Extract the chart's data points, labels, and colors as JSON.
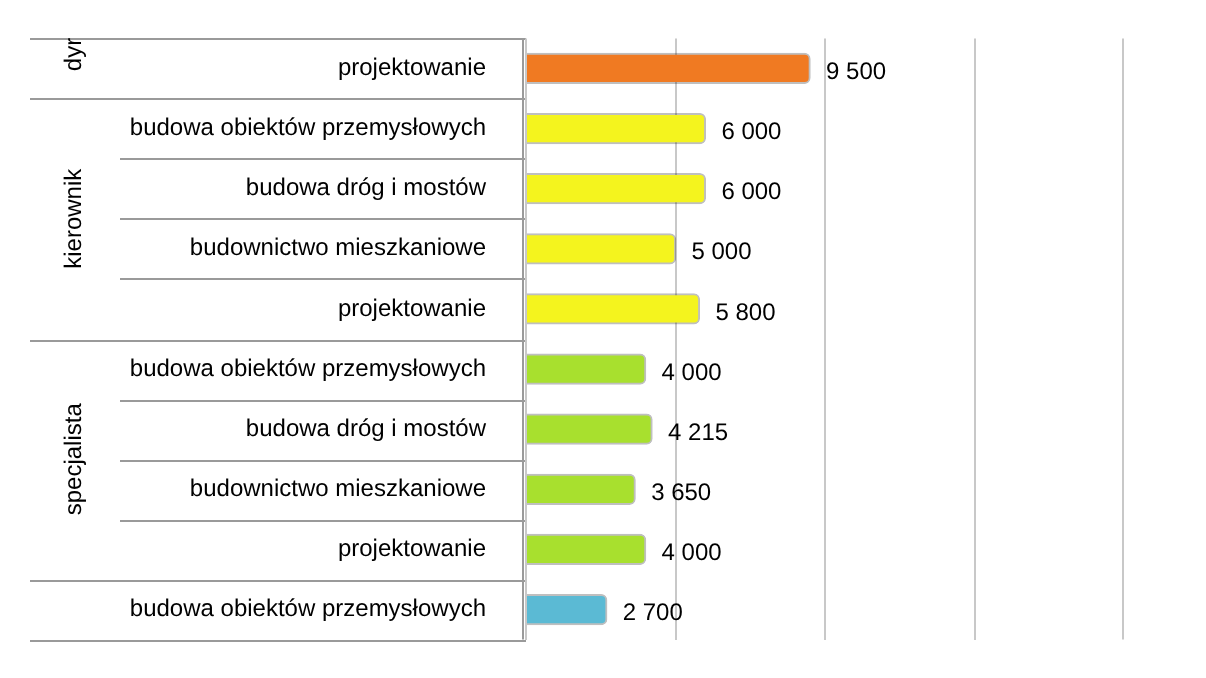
{
  "chart_data": {
    "type": "bar",
    "orientation": "horizontal",
    "categories": [
      "projektowanie",
      "budowa obiektów przemysłowych",
      "budowa dróg i mostów",
      "budownictwo mieszkaniowe",
      "projektowanie",
      "budowa obiektów przemysłowych",
      "budowa dróg i mostów",
      "budownictwo mieszkaniowe",
      "projektowanie",
      "budowa obiektów przemysłowych"
    ],
    "values": [
      9500,
      6000,
      6000,
      5000,
      5800,
      4000,
      4215,
      3650,
      4000,
      2700
    ],
    "colors": [
      "#f07a22",
      "#f4f41e",
      "#f4f41e",
      "#f4f41e",
      "#f4f41e",
      "#a8e02e",
      "#a8e02e",
      "#a8e02e",
      "#a8e02e",
      "#5bbad4"
    ],
    "value_labels": [
      "9 500",
      "6 000",
      "6 000",
      "5 000",
      "5 800",
      "4 000",
      "4 215",
      "3 650",
      "4 000",
      "2 700"
    ],
    "xlim": [
      0,
      20000
    ],
    "xticks": [
      {
        "value": 0,
        "label": null
      },
      {
        "value": 5000,
        "label": null
      },
      {
        "value": 10000,
        "label": null
      },
      {
        "value": 15000,
        "label": null
      }
    ],
    "tick_labels": "y",
    "grid": "x",
    "legend": false,
    "annotations": [
      "dyr",
      "kierownik",
      "specjalista"
    ]
  }
}
